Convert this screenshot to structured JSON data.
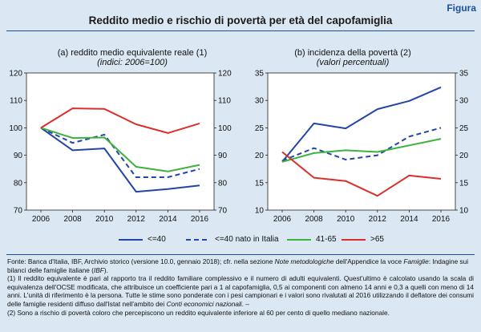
{
  "header": {
    "tag": "Figura",
    "title": "Reddito medio e rischio di povertà per età del capofamiglia"
  },
  "panels": [
    {
      "title": "(a) reddito medio equivalente reale (1)",
      "subtitle": "(indici: 2006=100)"
    },
    {
      "title": "(b) incidenza della povertà (2)",
      "subtitle": "(valori percentuali)"
    }
  ],
  "chart_data": [
    {
      "type": "line",
      "title": "(a) reddito medio equivalente reale (1)",
      "subtitle": "(indici: 2006=100)",
      "x": [
        2006,
        2008,
        2010,
        2012,
        2014,
        2016
      ],
      "ylim": [
        70,
        120
      ],
      "yticks": [
        70,
        80,
        90,
        100,
        110,
        120
      ],
      "y_axes": "left and right",
      "grid": false,
      "series": [
        {
          "name": "<=40",
          "color": "#2445a8",
          "dash": "solid",
          "values": [
            100,
            91.8,
            92.5,
            76.7,
            77.7,
            79.0
          ]
        },
        {
          "name": "<=40 nato in Italia",
          "color": "#2445a8",
          "dash": "dashed",
          "values": [
            100,
            94.5,
            97.5,
            82.0,
            82.0,
            85.0
          ]
        },
        {
          "name": "41-65",
          "color": "#3db23d",
          "dash": "solid",
          "values": [
            100,
            96.3,
            96.5,
            85.8,
            84.1,
            86.5
          ]
        },
        {
          "name": ">65",
          "color": "#d9302c",
          "dash": "solid",
          "values": [
            100,
            107.1,
            106.9,
            101.3,
            98.1,
            101.6
          ]
        }
      ]
    },
    {
      "type": "line",
      "title": "(b) incidenza della povertà (2)",
      "subtitle": "(valori percentuali)",
      "x": [
        2006,
        2008,
        2010,
        2012,
        2014,
        2016
      ],
      "ylim": [
        10,
        35
      ],
      "yticks": [
        10,
        15,
        20,
        25,
        30,
        35
      ],
      "y_axes": "left and right",
      "grid": false,
      "series": [
        {
          "name": "<=40",
          "color": "#2445a8",
          "dash": "solid",
          "values": [
            18.8,
            25.8,
            24.9,
            28.4,
            29.9,
            32.4
          ]
        },
        {
          "name": "<=40 nato in Italia",
          "color": "#2445a8",
          "dash": "dashed",
          "values": [
            19.0,
            21.3,
            19.2,
            20.0,
            23.4,
            25.0
          ]
        },
        {
          "name": "41-65",
          "color": "#3db23d",
          "dash": "solid",
          "values": [
            18.8,
            20.4,
            20.9,
            20.6,
            21.8,
            23.0
          ]
        },
        {
          "name": ">65",
          "color": "#d9302c",
          "dash": "solid",
          "values": [
            20.6,
            15.9,
            15.3,
            12.6,
            16.3,
            15.7
          ]
        }
      ]
    }
  ],
  "legend": [
    {
      "label": "<=40",
      "color": "#2445a8",
      "dash": "solid"
    },
    {
      "label": "<=40 nato in Italia",
      "color": "#2445a8",
      "dash": "dashed"
    },
    {
      "label": "41-65",
      "color": "#3db23d",
      "dash": "solid"
    },
    {
      "label": ">65",
      "color": "#d9302c",
      "dash": "solid"
    }
  ],
  "notes": {
    "source_prefix": "Fonte: Banca d'Italia, IBF, Archivio storico (versione 10.0, gennaio 2018); cfr. nella sezione ",
    "source_italic": "Note metodologiche",
    "source_mid": " dell'Appendice la voce ",
    "source_italic2": "Famiglie",
    "source_mid2": ": Indagine sui bilanci delle famiglie italiane (",
    "source_italic3": "IBF",
    "source_suffix": ").",
    "note1_prefix": "(1) Il reddito equivalente è pari al rapporto tra il reddito familiare complessivo e il numero di adulti equivalenti. Quest'ultimo è calcolato usando la scala di equivalenza dell'OCSE modificata, che attribuisce un coefficiente pari a 1 al capofamiglia, 0,5 ai componenti con almeno 14 anni e 0,3 a quelli con meno di 14 anni. L'unità di riferimento è la persona. Tutte le stime sono ponderate con i pesi campionari e i valori sono rivalutati al 2016 utilizzando il deflatore dei consumi delle famiglie residenti diffuso dall'Istat nell'ambito dei ",
    "note1_italic": "Conti economici nazionali",
    "note1_suffix": ". –",
    "note2": "(2) Sono a rischio di povertà coloro che percepiscono un reddito equivalente inferiore al 60 per cento di quello mediano nazionale."
  }
}
